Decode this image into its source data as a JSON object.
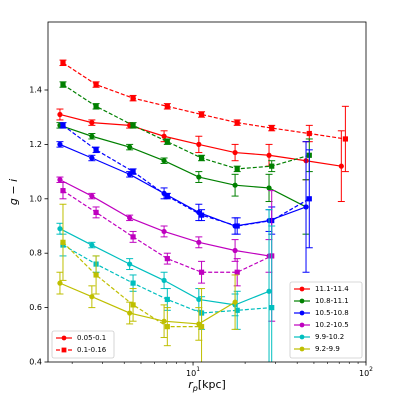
{
  "chart_data": {
    "type": "errorbar-line",
    "xlabel": {
      "main": "r",
      "sub": "p",
      "rest": "[kpc]"
    },
    "ylabel": "g − i",
    "xscale": "log",
    "xlim": [
      1.45,
      100
    ],
    "ylim": [
      0.4,
      1.65
    ],
    "xticks": [
      {
        "value": 10,
        "label": "10",
        "power": "1"
      },
      {
        "value": 100,
        "label": "10",
        "power": "2"
      }
    ],
    "xminor": [
      2,
      3,
      4,
      5,
      6,
      7,
      8,
      9,
      20,
      30,
      40,
      50,
      60,
      70,
      80,
      90
    ],
    "yticks": [
      0.4,
      0.6,
      0.8,
      {
        "value": 1,
        "label": "1.0"
      },
      1.2,
      1.4
    ],
    "styles": [
      {
        "name": "0.05-0.1",
        "marker": "circle",
        "dashed": false,
        "x": [
          1.7,
          2.6,
          4.3,
          6.8,
          10.8,
          17.5,
          27.5,
          45,
          72
        ]
      },
      {
        "name": "0.1-0.16",
        "marker": "square",
        "dashed": true,
        "x": [
          1.77,
          2.75,
          4.5,
          7.1,
          11.2,
          18,
          28.5,
          47,
          76
        ]
      }
    ],
    "series": [
      {
        "name": "11.1-11.4",
        "color": "#ff0000",
        "values": [
          [
            1.31,
            1.28,
            1.27,
            1.23,
            1.2,
            1.17,
            1.16,
            1.14,
            1.12
          ],
          [
            1.5,
            1.42,
            1.37,
            1.34,
            1.31,
            1.28,
            1.26,
            1.24,
            1.22
          ]
        ],
        "errors": [
          [
            0.02,
            0.01,
            0.01,
            0.02,
            0.03,
            0.03,
            0.04,
            0.07,
            0.13
          ],
          [
            0.01,
            0.01,
            0.01,
            0.01,
            0.01,
            0.01,
            0.01,
            0.03,
            0.12
          ]
        ]
      },
      {
        "name": "10.8-11.1",
        "color": "#008000",
        "values": [
          [
            1.27,
            1.23,
            1.19,
            1.14,
            1.08,
            1.05,
            1.04,
            0.97
          ],
          [
            1.42,
            1.34,
            1.27,
            1.21,
            1.15,
            1.11,
            1.12,
            1.16
          ]
        ],
        "errors": [
          [
            0.01,
            0.01,
            0.01,
            0.01,
            0.02,
            0.04,
            0.05,
            0.1
          ],
          [
            0.01,
            0.01,
            0.01,
            0.01,
            0.01,
            0.01,
            0.02,
            0.06
          ]
        ]
      },
      {
        "name": "10.5-10.8",
        "color": "#0000ff",
        "values": [
          [
            1.2,
            1.15,
            1.09,
            1.02,
            0.95,
            0.9,
            0.92,
            0.97
          ],
          [
            1.27,
            1.18,
            1.1,
            1.01,
            0.94,
            0.9,
            0.92,
            1.0
          ]
        ],
        "errors": [
          [
            0.01,
            0.01,
            0.01,
            0.02,
            0.03,
            0.03,
            0.04,
            0.24
          ],
          [
            0.01,
            0.01,
            0.01,
            0.01,
            0.02,
            0.03,
            0.05,
            0.18
          ]
        ]
      },
      {
        "name": "10.2-10.5",
        "color": "#bf00bf",
        "values": [
          [
            1.07,
            1.01,
            0.93,
            0.88,
            0.84,
            0.81,
            0.79
          ],
          [
            1.03,
            0.95,
            0.86,
            0.78,
            0.73,
            0.73,
            0.79
          ]
        ],
        "errors": [
          [
            0.01,
            0.01,
            0.01,
            0.02,
            0.02,
            0.04,
            0.06
          ],
          [
            0.03,
            0.02,
            0.02,
            0.02,
            0.04,
            0.05,
            0.24
          ]
        ]
      },
      {
        "name": "9.9-10.2",
        "color": "#00bfbf",
        "values": [
          [
            0.89,
            0.83,
            0.76,
            0.7,
            0.63,
            0.61,
            0.66
          ],
          [
            0.83,
            0.76,
            0.69,
            0.63,
            0.58,
            0.59,
            0.6
          ]
        ],
        "errors": [
          [
            0.02,
            0.01,
            0.02,
            0.03,
            0.04,
            0.04,
            0.3
          ],
          [
            0.04,
            0.03,
            0.03,
            0.04,
            0.06,
            0.07,
            0.3
          ]
        ]
      },
      {
        "name": "9.2-9.9",
        "color": "#bfbf00",
        "values": [
          [
            0.69,
            0.64,
            0.58,
            0.55,
            0.54,
            0.62
          ],
          [
            0.84,
            0.72,
            0.61,
            0.53,
            0.53
          ]
        ],
        "errors": [
          [
            0.04,
            0.04,
            0.04,
            0.06,
            0.06,
            0.1
          ],
          [
            0.14,
            0.07,
            0.06,
            0.07,
            0.14
          ]
        ]
      }
    ]
  }
}
